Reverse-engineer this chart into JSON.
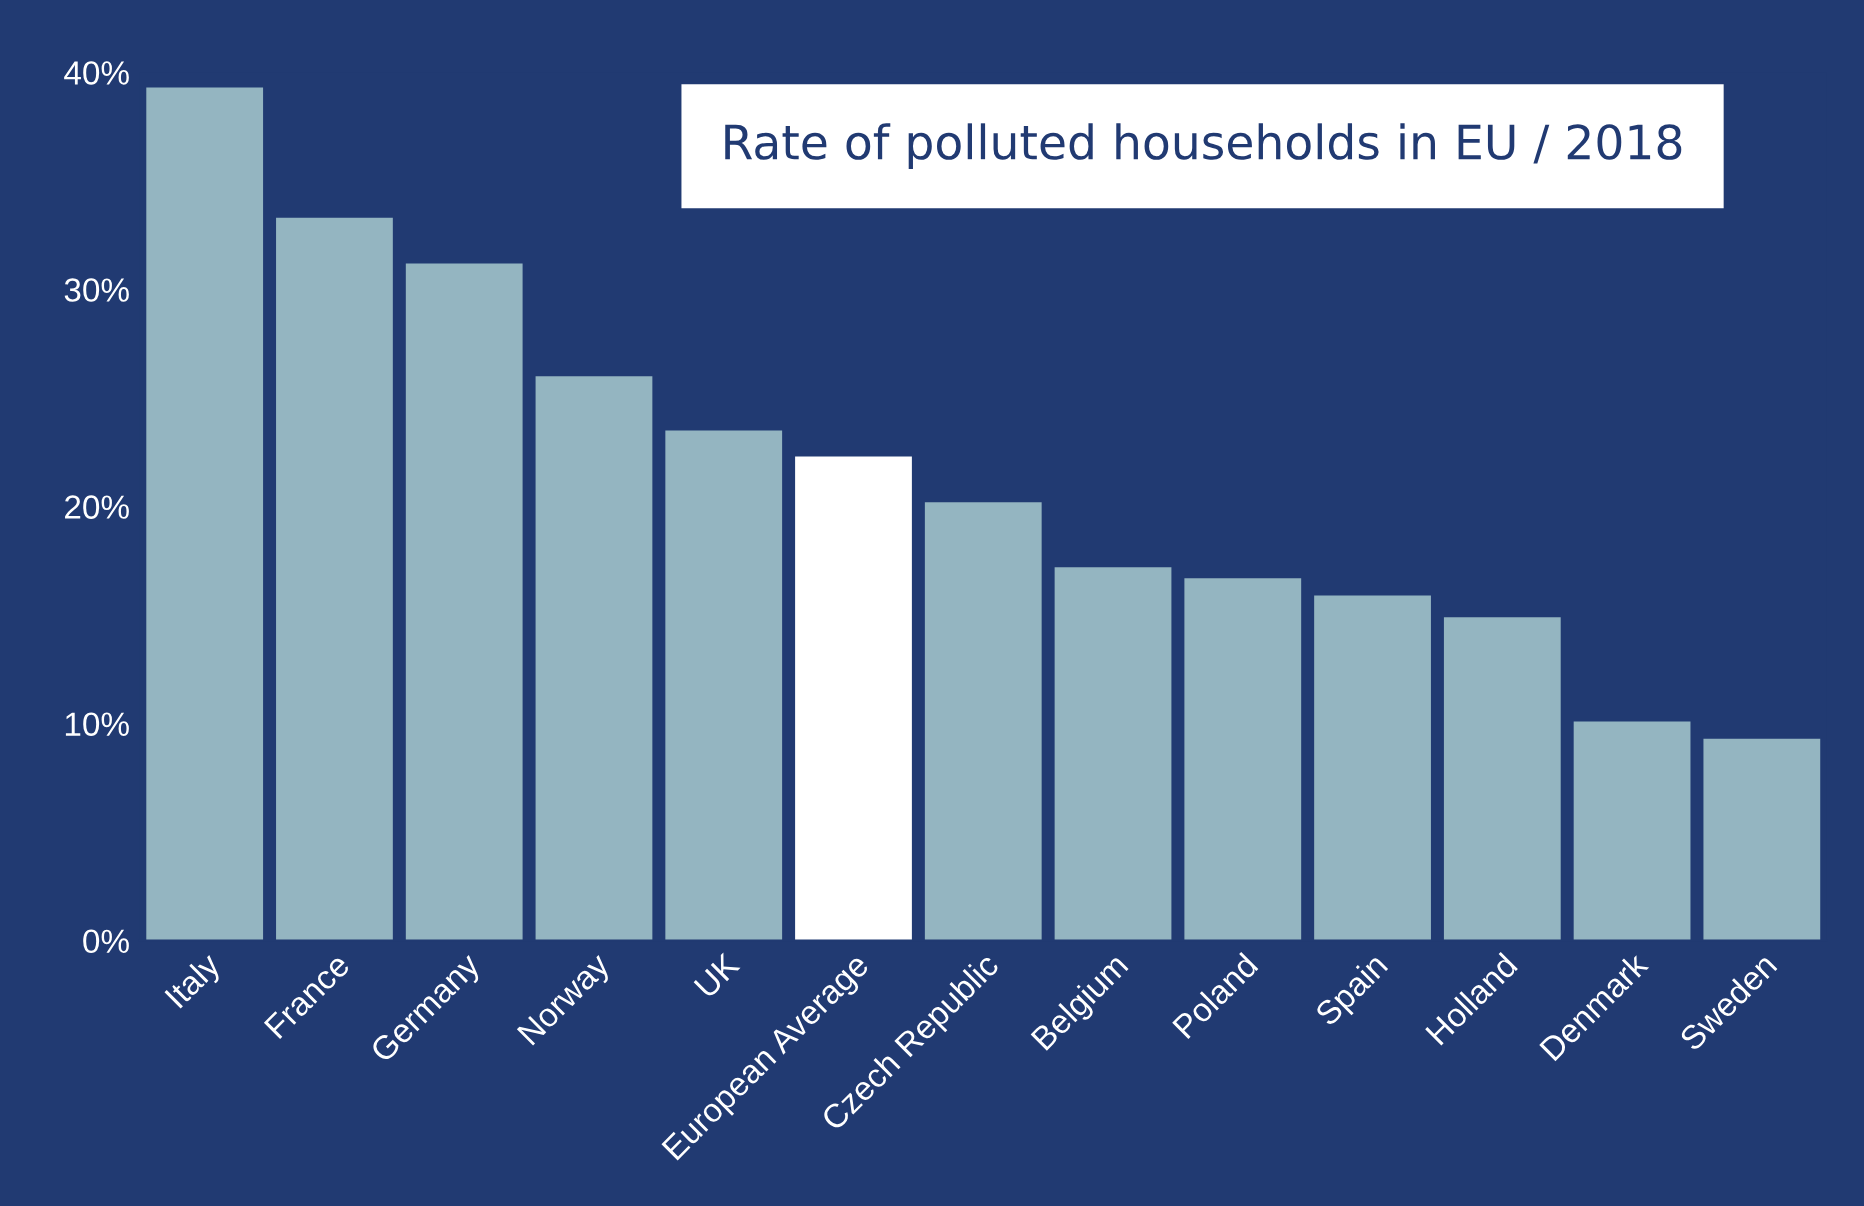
{
  "chart_data": {
    "type": "bar",
    "title": "Rate of polluted households in EU / 2018",
    "categories": [
      "Italy",
      "France",
      "Germany",
      "Norway",
      "UK",
      "European Average",
      "Czech Republic",
      "Belgium",
      "Poland",
      "Spain",
      "Holland",
      "Denmark",
      "Sweden"
    ],
    "values": [
      39.3,
      33.3,
      31.2,
      26.0,
      23.5,
      22.3,
      20.2,
      17.2,
      16.7,
      15.9,
      14.9,
      10.1,
      9.3
    ],
    "colors": [
      "#94b5c1",
      "#94b5c1",
      "#94b5c1",
      "#94b5c1",
      "#94b5c1",
      "#ffffff",
      "#94b5c1",
      "#94b5c1",
      "#94b5c1",
      "#94b5c1",
      "#94b5c1",
      "#94b5c1",
      "#94b5c1"
    ],
    "ylim": [
      0,
      40
    ],
    "yticks": [
      {
        "value": 0,
        "label": "0%"
      },
      {
        "value": 10,
        "label": "10%"
      },
      {
        "value": 20,
        "label": "20%"
      },
      {
        "value": 30,
        "label": "30%"
      },
      {
        "value": 40,
        "label": "40%"
      }
    ],
    "grid": false
  }
}
